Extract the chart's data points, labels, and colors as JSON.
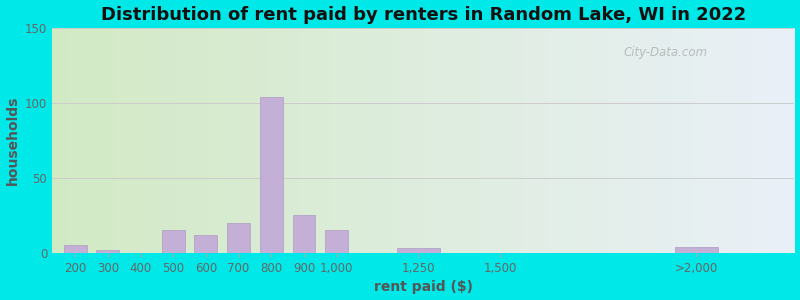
{
  "title": "Distribution of rent paid by renters in Random Lake, WI in 2022",
  "xlabel": "rent paid ($)",
  "ylabel": "households",
  "bar_color": "#c4afd6",
  "bar_edge_color": "#b09ac4",
  "categories": [
    "200",
    "300",
    "400",
    "500",
    "600",
    "700",
    "800",
    "900",
    "1,000",
    "1,250",
    "1,500",
    ">2,000"
  ],
  "x_positions": [
    200,
    300,
    400,
    500,
    600,
    700,
    800,
    900,
    1000,
    1250,
    1500,
    2100
  ],
  "values": [
    5,
    2,
    0,
    15,
    12,
    20,
    104,
    25,
    15,
    3,
    0,
    4
  ],
  "bar_widths": [
    70,
    70,
    70,
    70,
    70,
    70,
    70,
    70,
    70,
    130,
    130,
    130
  ],
  "ylim": [
    0,
    150
  ],
  "yticks": [
    0,
    50,
    100,
    150
  ],
  "xlim_left": 130,
  "xlim_right": 2400,
  "bg_outer": "#00e8e8",
  "bg_grad_left": "#d2eac4",
  "bg_grad_right": "#eaf0f8",
  "watermark": "City-Data.com",
  "title_fontsize": 13,
  "axis_label_fontsize": 10,
  "tick_fontsize": 8.5,
  "tick_color": "#666666",
  "label_color": "#555555"
}
